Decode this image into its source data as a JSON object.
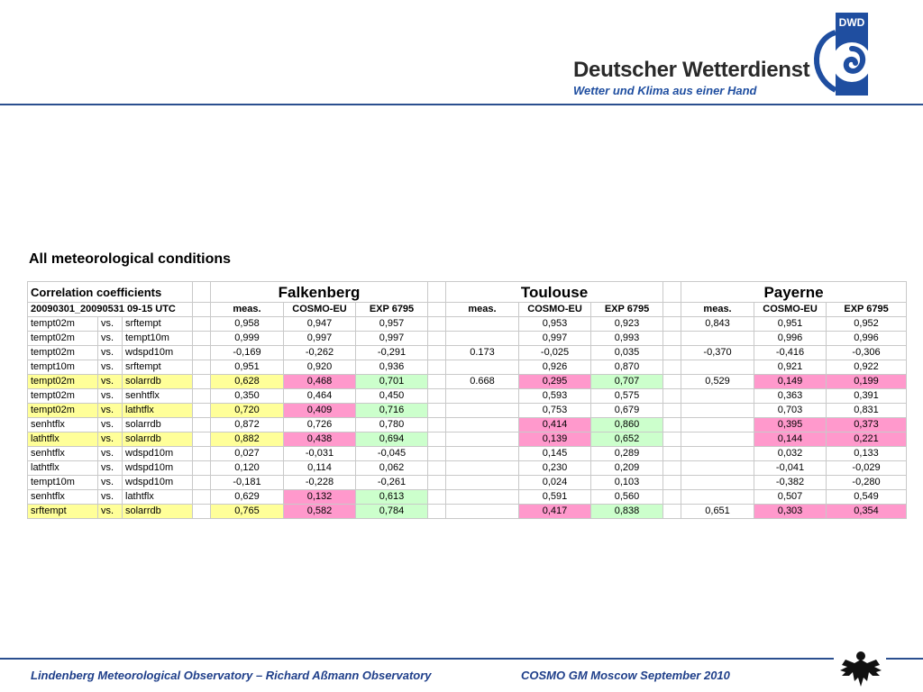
{
  "header": {
    "logo_title": "Deutscher Wetterdienst",
    "logo_subtitle": "Wetter und Klima aus einer Hand",
    "logo_badge": "DWD",
    "brand_color": "#1f4ea0"
  },
  "heading": "All meteorological conditions",
  "table": {
    "title": "Correlation coefficients",
    "period": "20090301_20090531 09-15 UTC",
    "stations": [
      "Falkenberg",
      "Toulouse",
      "Payerne"
    ],
    "subheaders": [
      "meas.",
      "COSMO-EU",
      "EXP 6795",
      "meas.",
      "COSMO-EU",
      "EXP 6795",
      "meas.",
      "COSMO-EU",
      "EXP 6795"
    ],
    "rows": [
      {
        "a": "tempt02m",
        "vs": "vs.",
        "b": "srftempt",
        "vals": [
          "0,958",
          "0,947",
          "0,957",
          "",
          "0,953",
          "0,923",
          "0,843",
          "0,951",
          "0,952"
        ],
        "hl": [
          "",
          "",
          "",
          "",
          "",
          "",
          "",
          "",
          ""
        ],
        "rowhl": ""
      },
      {
        "a": "tempt02m",
        "vs": "vs.",
        "b": "tempt10m",
        "vals": [
          "0,999",
          "0,997",
          "0,997",
          "",
          "0,997",
          "0,993",
          "",
          "0,996",
          "0,996"
        ],
        "hl": [
          "",
          "",
          "",
          "",
          "",
          "",
          "",
          "",
          ""
        ],
        "rowhl": ""
      },
      {
        "a": "tempt02m",
        "vs": "vs.",
        "b": "wdspd10m",
        "vals": [
          "-0,169",
          "-0,262",
          "-0,291",
          "0.173",
          "-0,025",
          "0,035",
          "-0,370",
          "-0,416",
          "-0,306"
        ],
        "hl": [
          "",
          "",
          "",
          "",
          "",
          "",
          "",
          "",
          ""
        ],
        "rowhl": ""
      },
      {
        "a": "tempt10m",
        "vs": "vs.",
        "b": "srftempt",
        "vals": [
          "0,951",
          "0,920",
          "0,936",
          "",
          "0,926",
          "0,870",
          "",
          "0,921",
          "0,922"
        ],
        "hl": [
          "",
          "",
          "",
          "",
          "",
          "",
          "",
          "",
          ""
        ],
        "rowhl": ""
      },
      {
        "a": "tempt02m",
        "vs": "vs.",
        "b": "solarrdb",
        "vals": [
          "0,628",
          "0,468",
          "0,701",
          "0.668",
          "0,295",
          "0,707",
          "0,529",
          "0,149",
          "0,199"
        ],
        "hl": [
          "y",
          "p",
          "g",
          "",
          "p",
          "g",
          "",
          "p",
          "p"
        ],
        "rowhl": "y"
      },
      {
        "a": "tempt02m",
        "vs": "vs.",
        "b": "senhtflx",
        "vals": [
          "0,350",
          "0,464",
          "0,450",
          "",
          "0,593",
          "0,575",
          "",
          "0,363",
          "0,391"
        ],
        "hl": [
          "",
          "",
          "",
          "",
          "",
          "",
          "",
          "",
          ""
        ],
        "rowhl": ""
      },
      {
        "a": "tempt02m",
        "vs": "vs.",
        "b": "lathtflx",
        "vals": [
          "0,720",
          "0,409",
          "0,716",
          "",
          "0,753",
          "0,679",
          "",
          "0,703",
          "0,831"
        ],
        "hl": [
          "y",
          "p",
          "g",
          "",
          "",
          "",
          "",
          "",
          ""
        ],
        "rowhl": "y"
      },
      {
        "a": "senhtflx",
        "vs": "vs.",
        "b": "solarrdb",
        "vals": [
          "0,872",
          "0,726",
          "0,780",
          "",
          "0,414",
          "0,860",
          "",
          "0,395",
          "0,373"
        ],
        "hl": [
          "",
          "",
          "",
          "",
          "p",
          "g",
          "",
          "p",
          "p"
        ],
        "rowhl": ""
      },
      {
        "a": "lathtflx",
        "vs": "vs.",
        "b": "solarrdb",
        "vals": [
          "0,882",
          "0,438",
          "0,694",
          "",
          "0,139",
          "0,652",
          "",
          "0,144",
          "0,221"
        ],
        "hl": [
          "y",
          "p",
          "g",
          "",
          "p",
          "g",
          "",
          "p",
          "p"
        ],
        "rowhl": "y"
      },
      {
        "a": "senhtflx",
        "vs": "vs.",
        "b": "wdspd10m",
        "vals": [
          "0,027",
          "-0,031",
          "-0,045",
          "",
          "0,145",
          "0,289",
          "",
          "0,032",
          "0,133"
        ],
        "hl": [
          "",
          "",
          "",
          "",
          "",
          "",
          "",
          "",
          ""
        ],
        "rowhl": ""
      },
      {
        "a": "lathtflx",
        "vs": "vs.",
        "b": "wdspd10m",
        "vals": [
          "0,120",
          "0,114",
          "0,062",
          "",
          "0,230",
          "0,209",
          "",
          "-0,041",
          "-0,029"
        ],
        "hl": [
          "",
          "",
          "",
          "",
          "",
          "",
          "",
          "",
          ""
        ],
        "rowhl": ""
      },
      {
        "a": "tempt10m",
        "vs": "vs.",
        "b": "wdspd10m",
        "vals": [
          "-0,181",
          "-0,228",
          "-0,261",
          "",
          "0,024",
          "0,103",
          "",
          "-0,382",
          "-0,280"
        ],
        "hl": [
          "",
          "",
          "",
          "",
          "",
          "",
          "",
          "",
          ""
        ],
        "rowhl": ""
      },
      {
        "a": "senhtflx",
        "vs": "vs.",
        "b": "lathtflx",
        "vals": [
          "0,629",
          "0,132",
          "0,613",
          "",
          "0,591",
          "0,560",
          "",
          "0,507",
          "0,549"
        ],
        "hl": [
          "",
          "p",
          "g",
          "",
          "",
          "",
          "",
          "",
          ""
        ],
        "rowhl": ""
      },
      {
        "a": "srftempt",
        "vs": "vs.",
        "b": "solarrdb",
        "vals": [
          "0,765",
          "0,582",
          "0,784",
          "",
          "0,417",
          "0,838",
          "0,651",
          "0,303",
          "0,354"
        ],
        "hl": [
          "y",
          "p",
          "g",
          "",
          "p",
          "g",
          "",
          "p",
          "p"
        ],
        "rowhl": "y"
      }
    ]
  },
  "footer": {
    "left": "Lindenberg Meteorological Observatory – Richard Aßmann Observatory",
    "right": "COSMO GM Moscow September 2010"
  },
  "colors": {
    "highlight_yellow": "#ffff99",
    "highlight_pink": "#ff99cc",
    "highlight_green": "#ccffcc",
    "rule_blue": "#2b4f8f"
  }
}
